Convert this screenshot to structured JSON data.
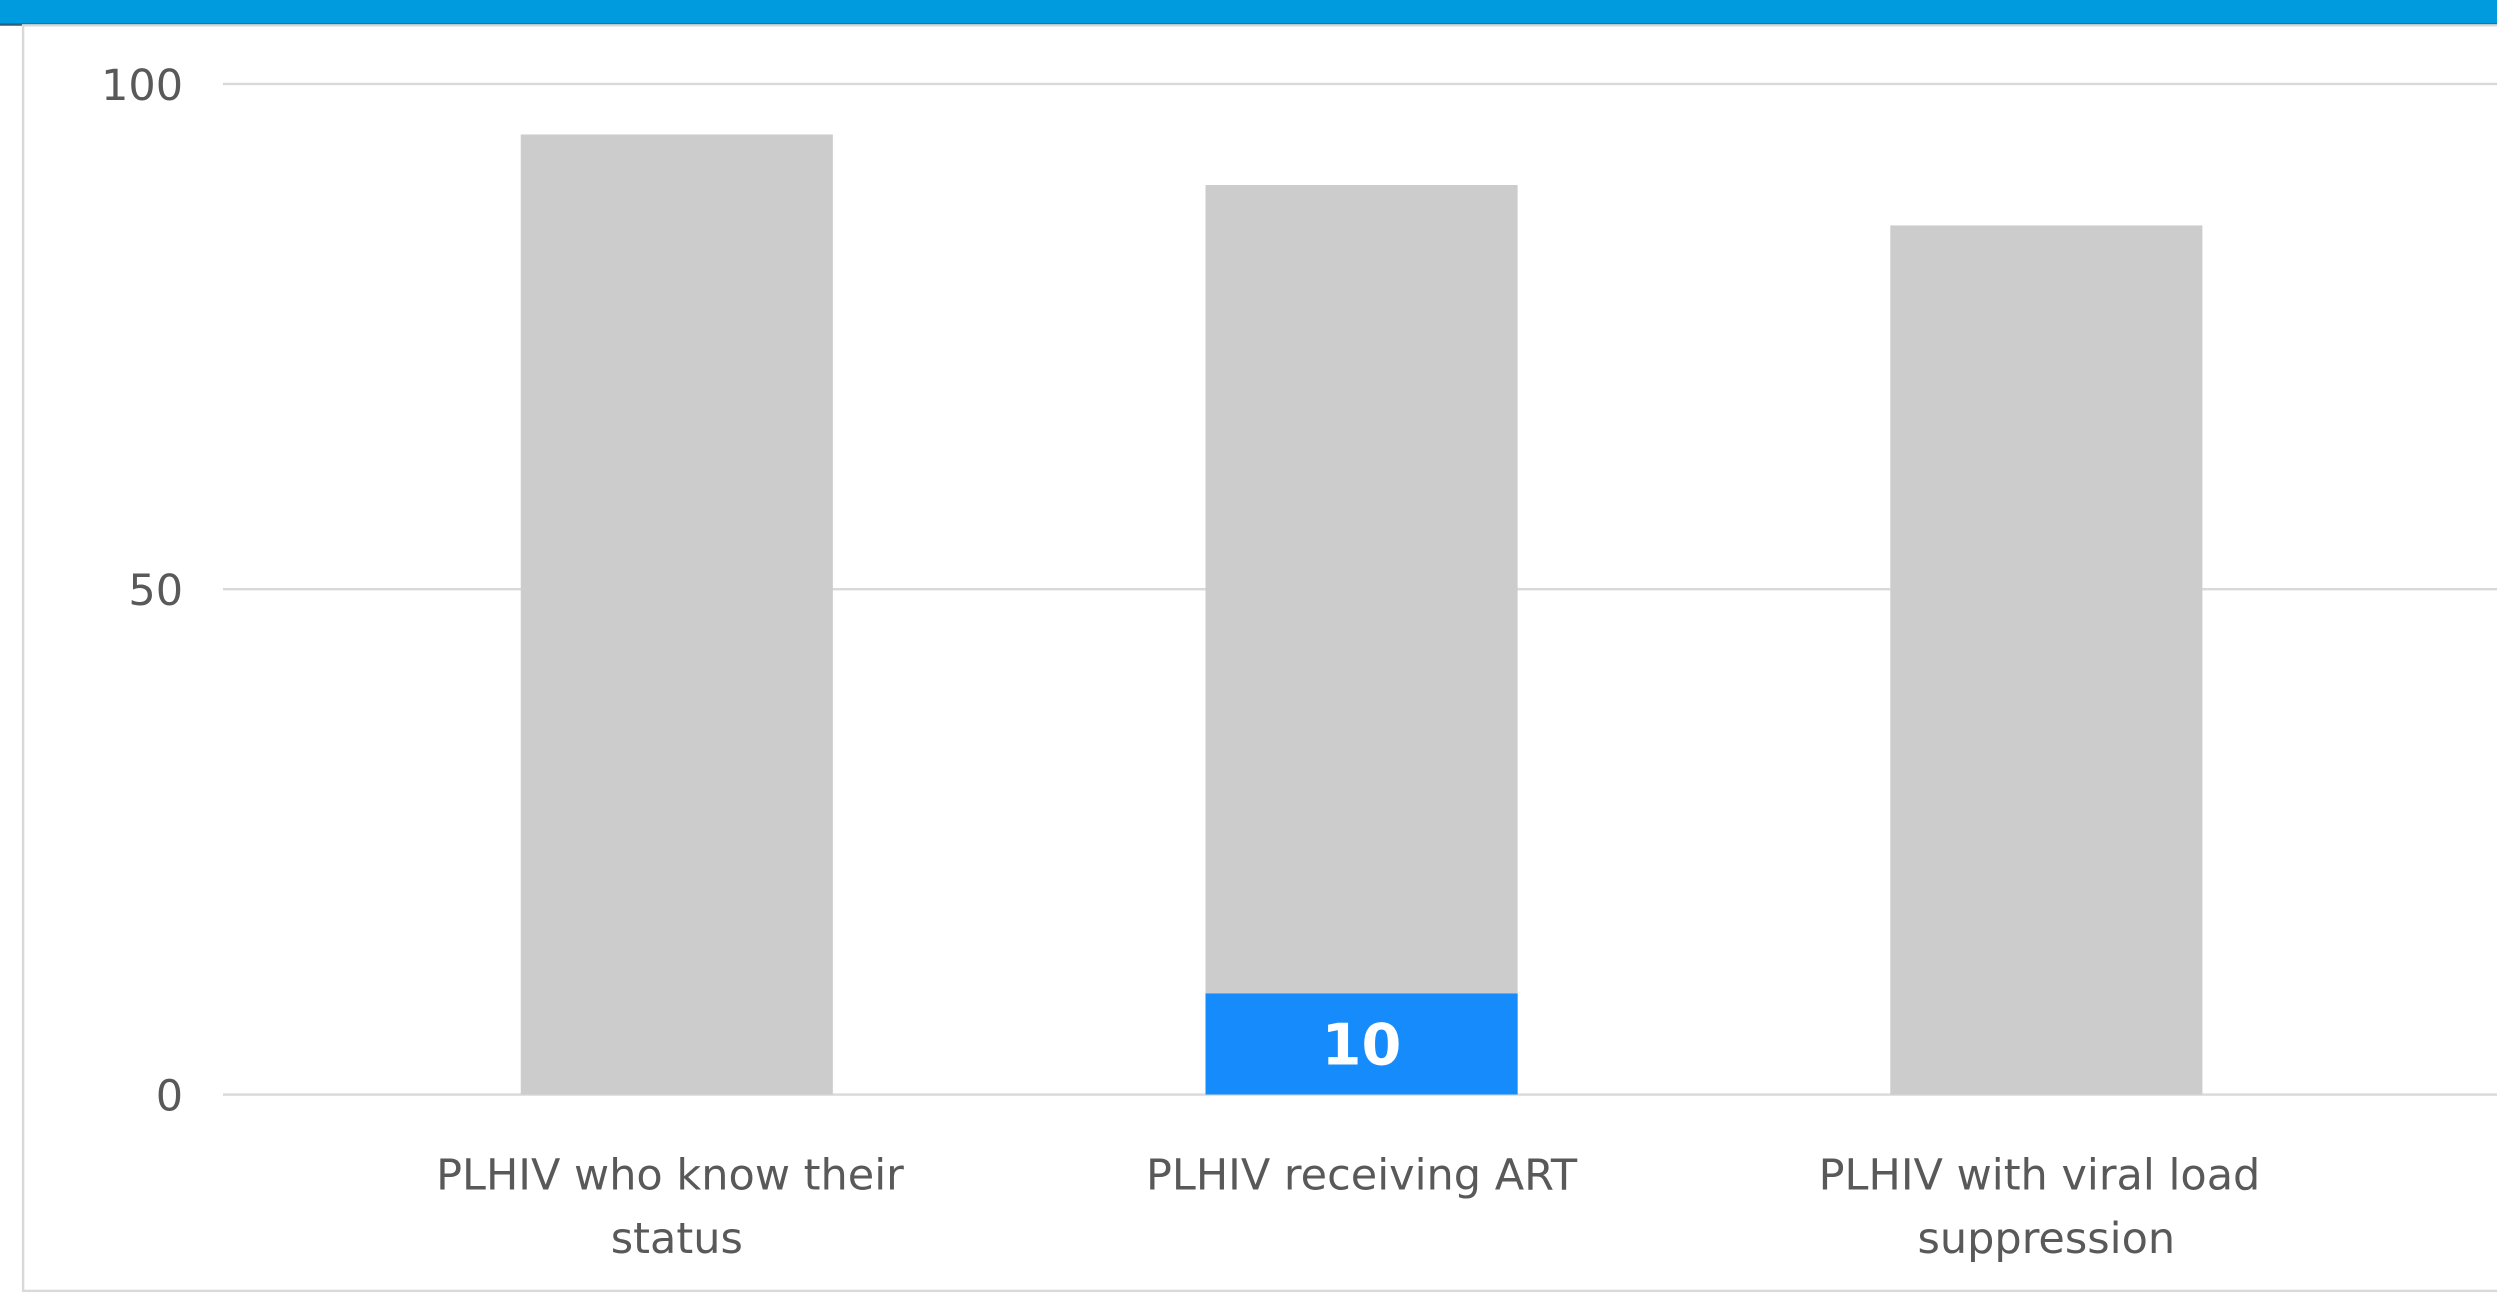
{
  "chart_data": {
    "type": "bar",
    "bar_mode": "overlay",
    "categories": [
      "PLHIV who know their status",
      "PLHIV receiving ART",
      "PLHIV with viral load suppression"
    ],
    "series": [
      {
        "color": "#cccccc",
        "values": [
          95,
          90,
          86
        ]
      },
      {
        "color": "#168bfb",
        "values": [
          null,
          10,
          null
        ]
      }
    ],
    "data_labels": [
      false,
      true
    ],
    "ylim": [
      0,
      100
    ],
    "yticks": [
      0,
      50,
      100
    ],
    "grid": true
  }
}
